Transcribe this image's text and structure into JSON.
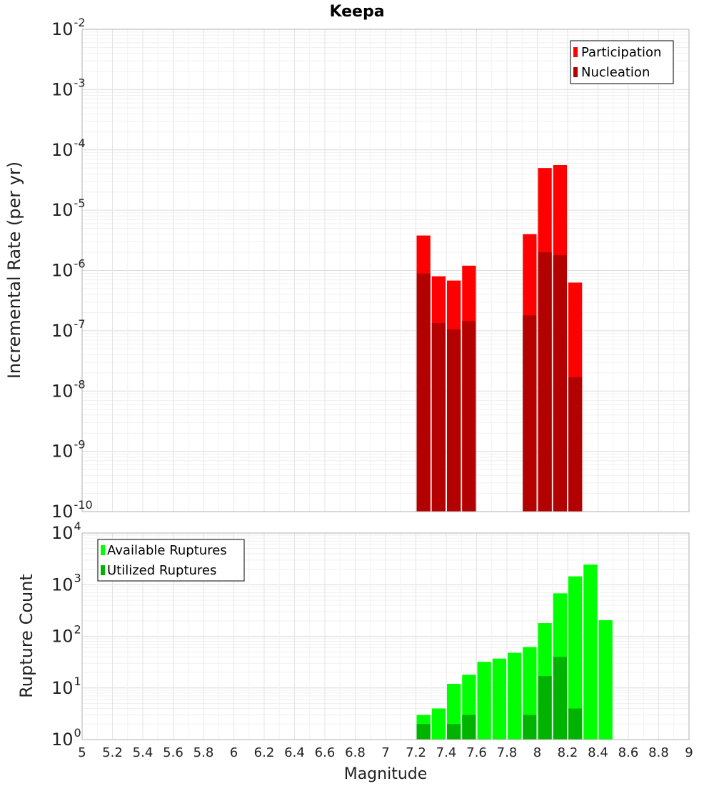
{
  "chart_data": [
    {
      "type": "bar",
      "title": "Keepa",
      "ylabel": "Incremental Rate (per yr)",
      "xlabel": "",
      "yscale": "log",
      "ylim_exponents": [
        -10,
        -2
      ],
      "xlim": [
        5,
        9
      ],
      "bin_width": 0.1,
      "legend_position": "top-right",
      "series": [
        {
          "name": "Participation",
          "color": "#ff0000",
          "bars": [
            {
              "x": 7.25,
              "y": 3.8e-06
            },
            {
              "x": 7.35,
              "y": 8e-07
            },
            {
              "x": 7.45,
              "y": 6.8e-07
            },
            {
              "x": 7.55,
              "y": 1.2e-06
            },
            {
              "x": 7.95,
              "y": 4e-06
            },
            {
              "x": 8.05,
              "y": 5e-05
            },
            {
              "x": 8.15,
              "y": 5.6e-05
            },
            {
              "x": 8.25,
              "y": 6.3e-07
            }
          ]
        },
        {
          "name": "Nucleation",
          "color": "#b30000",
          "bars": [
            {
              "x": 7.25,
              "y": 8.9e-07
            },
            {
              "x": 7.35,
              "y": 1.35e-07
            },
            {
              "x": 7.45,
              "y": 1.05e-07
            },
            {
              "x": 7.55,
              "y": 1.45e-07
            },
            {
              "x": 7.95,
              "y": 1.8e-07
            },
            {
              "x": 8.05,
              "y": 2e-06
            },
            {
              "x": 8.15,
              "y": 1.8e-06
            },
            {
              "x": 8.25,
              "y": 1.7e-08
            }
          ]
        }
      ]
    },
    {
      "type": "bar",
      "title": "",
      "ylabel": "Rupture Count",
      "xlabel": "Magnitude",
      "yscale": "log",
      "ylim_exponents": [
        0,
        4
      ],
      "xlim": [
        5,
        9
      ],
      "bin_width": 0.1,
      "legend_position": "top-left",
      "x_ticks": [
        "5",
        "5.2",
        "5.4",
        "5.6",
        "5.8",
        "6",
        "6.2",
        "6.4",
        "6.6",
        "6.8",
        "7",
        "7.2",
        "7.4",
        "7.6",
        "7.8",
        "8",
        "8.2",
        "8.4",
        "8.6",
        "8.8",
        "9"
      ],
      "series": [
        {
          "name": "Available Ruptures",
          "color": "#00ff00",
          "bars": [
            {
              "x": 6.65,
              "y": 1
            },
            {
              "x": 7.05,
              "y": 1
            },
            {
              "x": 7.25,
              "y": 3
            },
            {
              "x": 7.35,
              "y": 4
            },
            {
              "x": 7.45,
              "y": 12
            },
            {
              "x": 7.55,
              "y": 18
            },
            {
              "x": 7.65,
              "y": 32
            },
            {
              "x": 7.75,
              "y": 37
            },
            {
              "x": 7.85,
              "y": 48
            },
            {
              "x": 7.95,
              "y": 62
            },
            {
              "x": 8.05,
              "y": 180
            },
            {
              "x": 8.15,
              "y": 680
            },
            {
              "x": 8.25,
              "y": 1450
            },
            {
              "x": 8.35,
              "y": 2450
            },
            {
              "x": 8.45,
              "y": 205
            }
          ]
        },
        {
          "name": "Utilized Ruptures",
          "color": "#00b300",
          "bars": [
            {
              "x": 7.25,
              "y": 2
            },
            {
              "x": 7.35,
              "y": 1
            },
            {
              "x": 7.45,
              "y": 2
            },
            {
              "x": 7.55,
              "y": 3
            },
            {
              "x": 7.95,
              "y": 3
            },
            {
              "x": 8.05,
              "y": 17
            },
            {
              "x": 8.15,
              "y": 40
            },
            {
              "x": 8.25,
              "y": 4
            }
          ]
        }
      ]
    }
  ]
}
